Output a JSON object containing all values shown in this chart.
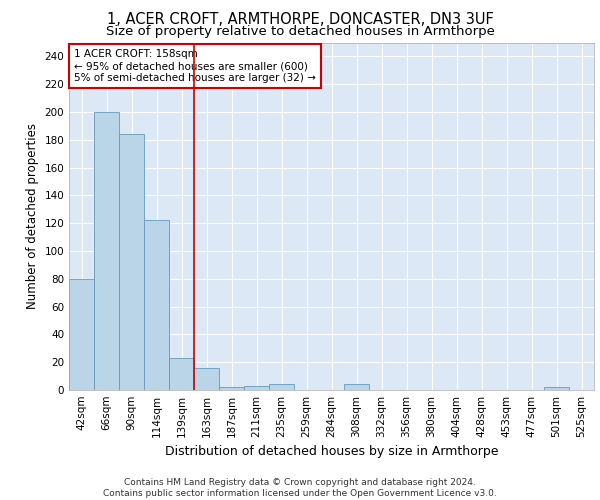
{
  "title_line1": "1, ACER CROFT, ARMTHORPE, DONCASTER, DN3 3UF",
  "title_line2": "Size of property relative to detached houses in Armthorpe",
  "xlabel": "Distribution of detached houses by size in Armthorpe",
  "ylabel": "Number of detached properties",
  "footer_line1": "Contains HM Land Registry data © Crown copyright and database right 2024.",
  "footer_line2": "Contains public sector information licensed under the Open Government Licence v3.0.",
  "annotation_title": "1 ACER CROFT: 158sqm",
  "annotation_line1": "← 95% of detached houses are smaller (600)",
  "annotation_line2": "5% of semi-detached houses are larger (32) →",
  "bar_labels": [
    "42sqm",
    "66sqm",
    "90sqm",
    "114sqm",
    "139sqm",
    "163sqm",
    "187sqm",
    "211sqm",
    "235sqm",
    "259sqm",
    "284sqm",
    "308sqm",
    "332sqm",
    "356sqm",
    "380sqm",
    "404sqm",
    "428sqm",
    "453sqm",
    "477sqm",
    "501sqm",
    "525sqm"
  ],
  "bar_values": [
    80,
    200,
    184,
    122,
    23,
    16,
    2,
    3,
    4,
    0,
    0,
    4,
    0,
    0,
    0,
    0,
    0,
    0,
    0,
    2,
    0
  ],
  "bar_color": "#bad4e8",
  "bar_edge_color": "#6699bb",
  "vline_color": "#cc0000",
  "vline_x": 4.5,
  "annotation_box_color": "#cc0000",
  "ylim": [
    0,
    250
  ],
  "yticks": [
    0,
    20,
    40,
    60,
    80,
    100,
    120,
    140,
    160,
    180,
    200,
    220,
    240
  ],
  "bg_color": "#dce8f5",
  "grid_color": "#ffffff",
  "title_fontsize": 10.5,
  "subtitle_fontsize": 9.5,
  "axis_label_fontsize": 8.5,
  "tick_fontsize": 7.5,
  "footer_fontsize": 6.5
}
